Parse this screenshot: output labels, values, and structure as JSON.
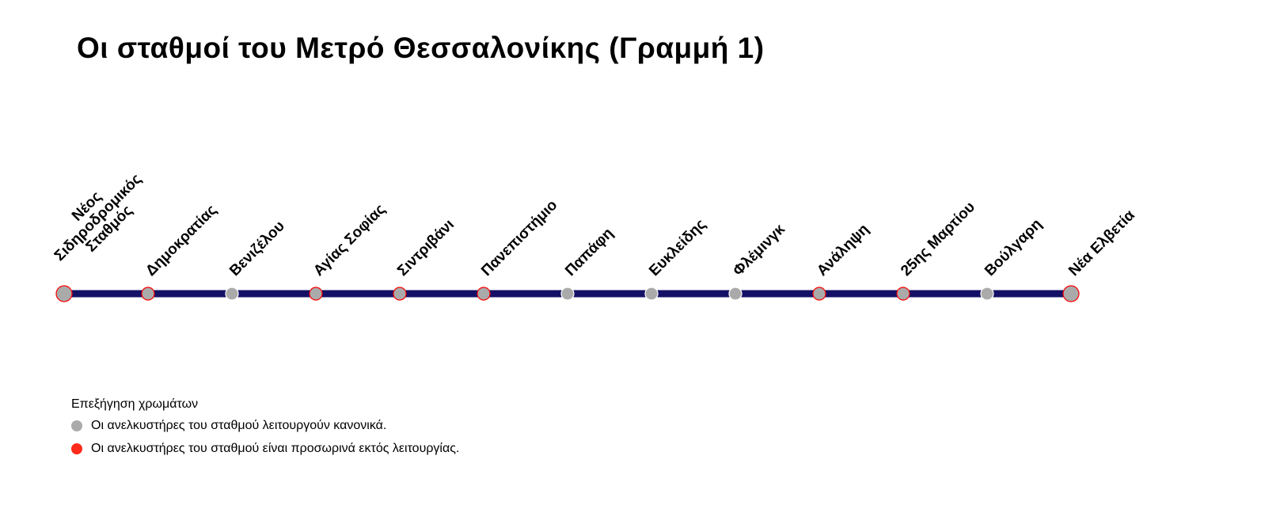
{
  "title": "Οι σταθμοί του Μετρό Θεσσαλονίκης (Γραμμή 1)",
  "line_color": "#141066",
  "stations": [
    {
      "name": "Νέος Σιδηροδρομικός Σταθμός",
      "color": "#ff0000"
    },
    {
      "name": "Δημοκρατίας",
      "color": "#ff0000"
    },
    {
      "name": "Βενιζέλου",
      "color": "#ffffff"
    },
    {
      "name": "Αγίας Σοφίας",
      "color": "#ff0000"
    },
    {
      "name": "Σιντριβάνι",
      "color": "#ff0000"
    },
    {
      "name": "Πανεπιστήμιο",
      "color": "#ff0000"
    },
    {
      "name": "Παπάφη",
      "color": "#ffffff"
    },
    {
      "name": "Ευκλείδης",
      "color": "#ffffff"
    },
    {
      "name": "Φλέμινγκ",
      "color": "#ffffff"
    },
    {
      "name": "Ανάληψη",
      "color": "#ff0000"
    },
    {
      "name": "25ης Μαρτίου",
      "color": "#ff0000"
    },
    {
      "name": "Βούλγαρη",
      "color": "#ffffff"
    },
    {
      "name": "Νέα Ελβετία",
      "color": "#ff0000"
    }
  ],
  "legend": {
    "title": "Επεξήγηση χρωμάτων",
    "items": [
      {
        "label": "Οι ανελκυστήρες του σταθμού λειτουργούν κανονικά.",
        "color": "#aaaaaa"
      },
      {
        "label": "Οι ανελκυστήρες του σταθμού είναι προσωρινά εκτός λειτουργίας.",
        "color": "#ff2a1a"
      }
    ]
  }
}
